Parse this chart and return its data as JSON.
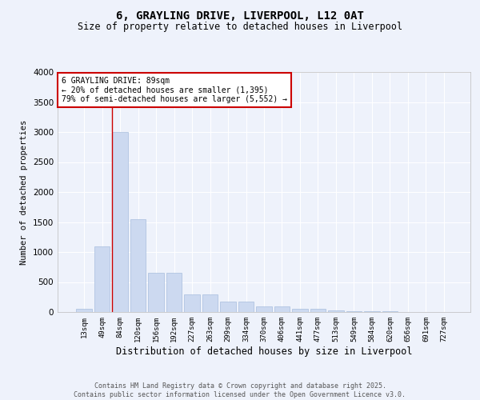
{
  "title_line1": "6, GRAYLING DRIVE, LIVERPOOL, L12 0AT",
  "title_line2": "Size of property relative to detached houses in Liverpool",
  "xlabel": "Distribution of detached houses by size in Liverpool",
  "ylabel": "Number of detached properties",
  "bar_labels": [
    "13sqm",
    "49sqm",
    "84sqm",
    "120sqm",
    "156sqm",
    "192sqm",
    "227sqm",
    "263sqm",
    "299sqm",
    "334sqm",
    "370sqm",
    "406sqm",
    "441sqm",
    "477sqm",
    "513sqm",
    "549sqm",
    "584sqm",
    "620sqm",
    "656sqm",
    "691sqm",
    "727sqm"
  ],
  "bar_values": [
    50,
    1100,
    3000,
    1550,
    650,
    650,
    300,
    300,
    175,
    175,
    100,
    100,
    50,
    50,
    30,
    10,
    10,
    10,
    5,
    5,
    5
  ],
  "bar_color": "#ccd9f0",
  "bar_edgecolor": "#a8bedd",
  "ylim": [
    0,
    4000
  ],
  "yticks": [
    0,
    500,
    1000,
    1500,
    2000,
    2500,
    3000,
    3500,
    4000
  ],
  "vline_color": "#cc0000",
  "annotation_text": "6 GRAYLING DRIVE: 89sqm\n← 20% of detached houses are smaller (1,395)\n79% of semi-detached houses are larger (5,552) →",
  "annotation_box_color": "#cc0000",
  "background_color": "#eef2fb",
  "grid_color": "#ffffff",
  "footer_line1": "Contains HM Land Registry data © Crown copyright and database right 2025.",
  "footer_line2": "Contains public sector information licensed under the Open Government Licence v3.0."
}
